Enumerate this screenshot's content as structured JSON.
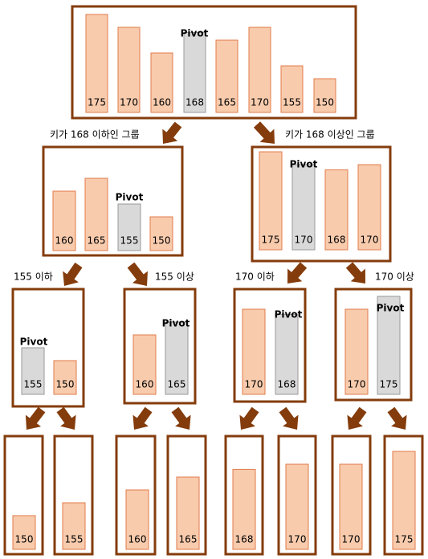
{
  "nodes": [
    {
      "pivot_label": "Pivot",
      "bars": [
        {
          "value": 175,
          "color": "#f8cbad"
        },
        {
          "value": 170,
          "color": "#f8cbad"
        },
        {
          "value": 160,
          "color": "#f8cbad"
        },
        {
          "value": 168,
          "color": "#d9d9d9"
        },
        {
          "value": 165,
          "color": "#f8cbad"
        },
        {
          "value": 170,
          "color": "#f8cbad"
        },
        {
          "value": 155,
          "color": "#f8cbad"
        },
        {
          "value": 150,
          "color": "#f8cbad"
        }
      ]
    },
    {
      "pivot_label": "Pivot",
      "bars": [
        {
          "value": 160,
          "color": "#f8cbad"
        },
        {
          "value": 165,
          "color": "#f8cbad"
        },
        {
          "value": 155,
          "color": "#d9d9d9"
        },
        {
          "value": 150,
          "color": "#f8cbad"
        }
      ]
    },
    {
      "pivot_label": "Pivot",
      "bars": [
        {
          "value": 175,
          "color": "#f8cbad"
        },
        {
          "value": 170,
          "color": "#d9d9d9"
        },
        {
          "value": 168,
          "color": "#f8cbad"
        },
        {
          "value": 170,
          "color": "#f8cbad"
        }
      ]
    },
    {
      "pivot_label": "Pivot",
      "bars": [
        {
          "value": 155,
          "color": "#d9d9d9"
        },
        {
          "value": 150,
          "color": "#f8cbad"
        }
      ]
    },
    {
      "pivot_label": "Pivot",
      "bars": [
        {
          "value": 160,
          "color": "#f8cbad"
        },
        {
          "value": 165,
          "color": "#d9d9d9"
        }
      ]
    },
    {
      "pivot_label": "Pivot",
      "bars": [
        {
          "value": 170,
          "color": "#f8cbad"
        },
        {
          "value": 168,
          "color": "#d9d9d9"
        }
      ]
    },
    {
      "pivot_label": "Pivot",
      "bars": [
        {
          "value": 170,
          "color": "#f8cbad"
        },
        {
          "value": 175,
          "color": "#d9d9d9"
        }
      ]
    },
    {
      "bars": [
        {
          "value": 150,
          "color": "#f8cbad"
        }
      ]
    },
    {
      "bars": [
        {
          "value": 155,
          "color": "#f8cbad"
        }
      ]
    },
    {
      "bars": [
        {
          "value": 160,
          "color": "#f8cbad"
        }
      ]
    },
    {
      "bars": [
        {
          "value": 165,
          "color": "#f8cbad"
        }
      ]
    },
    {
      "bars": [
        {
          "value": 168,
          "color": "#f8cbad"
        }
      ]
    },
    {
      "bars": [
        {
          "value": 170,
          "color": "#f8cbad"
        }
      ]
    },
    {
      "bars": [
        {
          "value": 170,
          "color": "#f8cbad"
        }
      ]
    },
    {
      "bars": [
        {
          "value": 175,
          "color": "#f8cbad"
        }
      ]
    }
  ],
  "labels": [
    "키가 168 이하인 그룹",
    "키가 168 이상인 그룹",
    "155 이하",
    "155 이상",
    "170 이하",
    "170 이상"
  ]
}
